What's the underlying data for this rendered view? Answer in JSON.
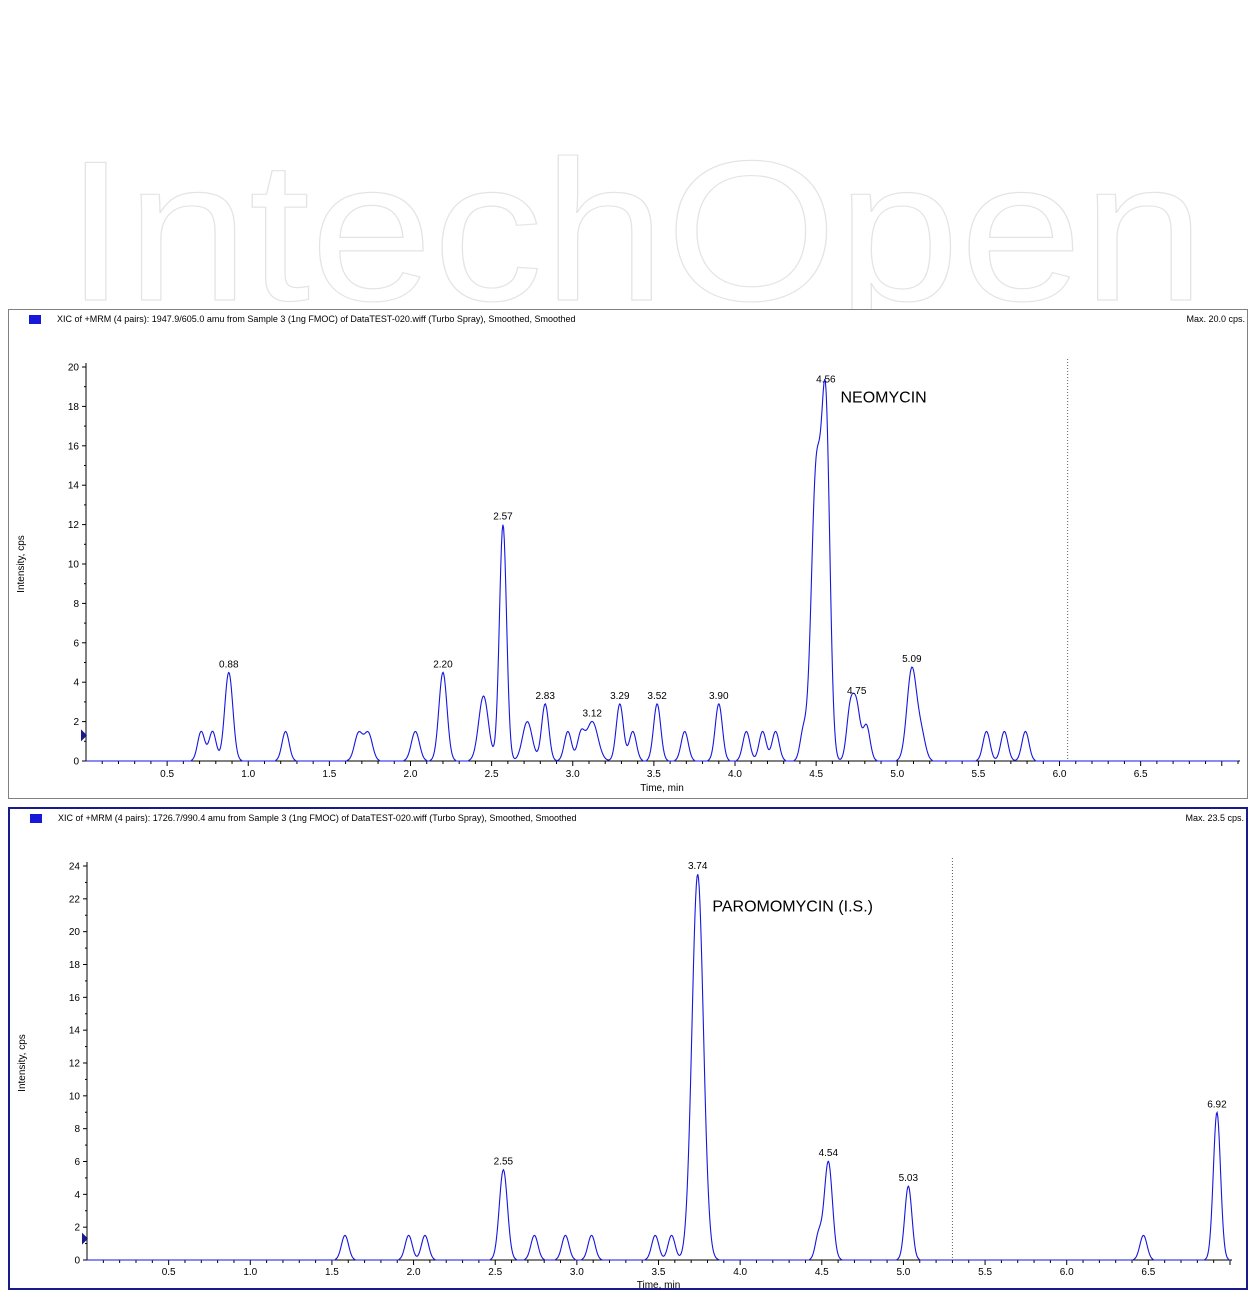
{
  "watermark": {
    "text": "IntechOpen"
  },
  "colors": {
    "trace": "#1616e0",
    "marker": "#1a1a8c",
    "frame_selected": "#1a1a8c",
    "cutoff_line": "#606060"
  },
  "chart_data": [
    {
      "type": "line",
      "title": "XIC of +MRM (4 pairs): 1947.9/605.0 amu from Sample 3 (1ng  FMOC) of DataTEST-020.wiff (Turbo Spray), Smoothed, Smoothed",
      "max_label": "Max. 20.0 cps.",
      "xlabel": "Time, min",
      "ylabel": "Intensity, cps",
      "xlim": [
        0,
        7.1
      ],
      "ylim": [
        0,
        20
      ],
      "x_ticks": [
        0.5,
        1.0,
        1.5,
        2.0,
        2.5,
        3.0,
        3.5,
        4.0,
        4.5,
        5.0,
        5.5,
        6.0,
        6.5
      ],
      "x_tick_labels": [
        "0.5",
        "1.0",
        "1.5",
        "2.0",
        "2.5",
        "3.0",
        "3.5",
        "4.0",
        "4.5",
        "5.0",
        "5.5",
        "6.0",
        "6.5"
      ],
      "y_ticks": [
        0,
        2,
        4,
        6,
        8,
        10,
        12,
        14,
        16,
        18,
        20
      ],
      "y_tick_labels": [
        "0",
        "2",
        "4",
        "6",
        "8",
        "10",
        "12",
        "14",
        "16",
        "18",
        "20"
      ],
      "cutoff_x": 6.05,
      "compound": {
        "text": "NEOMYCIN",
        "x": 4.65,
        "y": 18.5
      },
      "peaks": [
        {
          "t": 0.71,
          "h": 1.5,
          "w": 0.022
        },
        {
          "t": 0.78,
          "h": 1.5,
          "w": 0.022
        },
        {
          "t": 0.88,
          "h": 4.5,
          "w": 0.025,
          "label": "0.88"
        },
        {
          "t": 1.23,
          "h": 1.5,
          "w": 0.022
        },
        {
          "t": 1.68,
          "h": 1.4,
          "w": 0.025
        },
        {
          "t": 1.74,
          "h": 1.4,
          "w": 0.025
        },
        {
          "t": 2.03,
          "h": 1.5,
          "w": 0.025
        },
        {
          "t": 2.2,
          "h": 4.5,
          "w": 0.025,
          "label": "2.20"
        },
        {
          "t": 2.45,
          "h": 3.3,
          "w": 0.03
        },
        {
          "t": 2.57,
          "h": 12.0,
          "w": 0.022,
          "label": "2.57"
        },
        {
          "t": 2.72,
          "h": 2.0,
          "w": 0.03
        },
        {
          "t": 2.83,
          "h": 2.9,
          "w": 0.022,
          "label": "2.83"
        },
        {
          "t": 2.97,
          "h": 1.5,
          "w": 0.022
        },
        {
          "t": 3.05,
          "h": 1.3,
          "w": 0.022
        },
        {
          "t": 3.12,
          "h": 2.0,
          "w": 0.035,
          "label": "3.12"
        },
        {
          "t": 3.29,
          "h": 2.9,
          "w": 0.022,
          "label": "3.29"
        },
        {
          "t": 3.37,
          "h": 1.5,
          "w": 0.022
        },
        {
          "t": 3.52,
          "h": 2.9,
          "w": 0.022,
          "label": "3.52"
        },
        {
          "t": 3.69,
          "h": 1.5,
          "w": 0.022
        },
        {
          "t": 3.9,
          "h": 2.9,
          "w": 0.022,
          "label": "3.90"
        },
        {
          "t": 4.07,
          "h": 1.5,
          "w": 0.022
        },
        {
          "t": 4.17,
          "h": 1.5,
          "w": 0.022
        },
        {
          "t": 4.25,
          "h": 1.5,
          "w": 0.022
        },
        {
          "t": 4.42,
          "h": 1.4,
          "w": 0.02
        },
        {
          "t": 4.5,
          "h": 14.5,
          "w": 0.03
        },
        {
          "t": 4.56,
          "h": 17.0,
          "w": 0.025,
          "label": "4.56"
        },
        {
          "t": 4.71,
          "h": 2.6,
          "w": 0.022
        },
        {
          "t": 4.75,
          "h": 2.6,
          "w": 0.022,
          "label": "4.75"
        },
        {
          "t": 4.81,
          "h": 1.8,
          "w": 0.022
        },
        {
          "t": 5.09,
          "h": 4.7,
          "w": 0.03,
          "label": "5.09"
        },
        {
          "t": 5.15,
          "h": 1.2,
          "w": 0.025
        },
        {
          "t": 5.55,
          "h": 1.5,
          "w": 0.022
        },
        {
          "t": 5.66,
          "h": 1.5,
          "w": 0.022
        },
        {
          "t": 5.79,
          "h": 1.5,
          "w": 0.022
        }
      ]
    },
    {
      "type": "line",
      "title": "XIC of +MRM (4 pairs): 1726.7/990.4 amu from Sample 3 (1ng  FMOC) of DataTEST-020.wiff (Turbo Spray), Smoothed, Smoothed",
      "max_label": "Max. 23.5 cps.",
      "xlabel": "Time, min",
      "ylabel": "Intensity, cps",
      "xlim": [
        0,
        7.0
      ],
      "ylim": [
        0,
        24
      ],
      "x_ticks": [
        0.5,
        1.0,
        1.5,
        2.0,
        2.5,
        3.0,
        3.5,
        4.0,
        4.5,
        5.0,
        5.5,
        6.0,
        6.5
      ],
      "x_tick_labels": [
        "0.5",
        "1.0",
        "1.5",
        "2.0",
        "2.5",
        "3.0",
        "3.5",
        "4.0",
        "4.5",
        "5.0",
        "5.5",
        "6.0",
        "6.5"
      ],
      "y_ticks": [
        0,
        2,
        4,
        6,
        8,
        10,
        12,
        14,
        16,
        18,
        20,
        22,
        24
      ],
      "y_tick_labels": [
        "0",
        "2",
        "4",
        "6",
        "8",
        "10",
        "12",
        "14",
        "16",
        "18",
        "20",
        "22",
        "24"
      ],
      "cutoff_x": 5.3,
      "compound": {
        "text": "PAROMOMYCIN (I.S.)",
        "x": 3.83,
        "y": 21.6
      },
      "peaks": [
        {
          "t": 1.58,
          "h": 1.5,
          "w": 0.022
        },
        {
          "t": 1.97,
          "h": 1.5,
          "w": 0.022
        },
        {
          "t": 2.07,
          "h": 1.5,
          "w": 0.022
        },
        {
          "t": 2.55,
          "h": 5.5,
          "w": 0.025,
          "label": "2.55"
        },
        {
          "t": 2.74,
          "h": 1.5,
          "w": 0.022
        },
        {
          "t": 2.93,
          "h": 1.5,
          "w": 0.022
        },
        {
          "t": 3.09,
          "h": 1.5,
          "w": 0.022
        },
        {
          "t": 3.48,
          "h": 1.5,
          "w": 0.022
        },
        {
          "t": 3.58,
          "h": 1.5,
          "w": 0.022
        },
        {
          "t": 3.74,
          "h": 23.5,
          "w": 0.035,
          "label": "3.74"
        },
        {
          "t": 4.48,
          "h": 1.5,
          "w": 0.02
        },
        {
          "t": 4.54,
          "h": 6.0,
          "w": 0.025,
          "label": "4.54"
        },
        {
          "t": 5.03,
          "h": 4.5,
          "w": 0.022,
          "label": "5.03"
        },
        {
          "t": 6.47,
          "h": 1.5,
          "w": 0.022
        },
        {
          "t": 6.92,
          "h": 9.0,
          "w": 0.022,
          "label": "6.92"
        }
      ]
    }
  ]
}
